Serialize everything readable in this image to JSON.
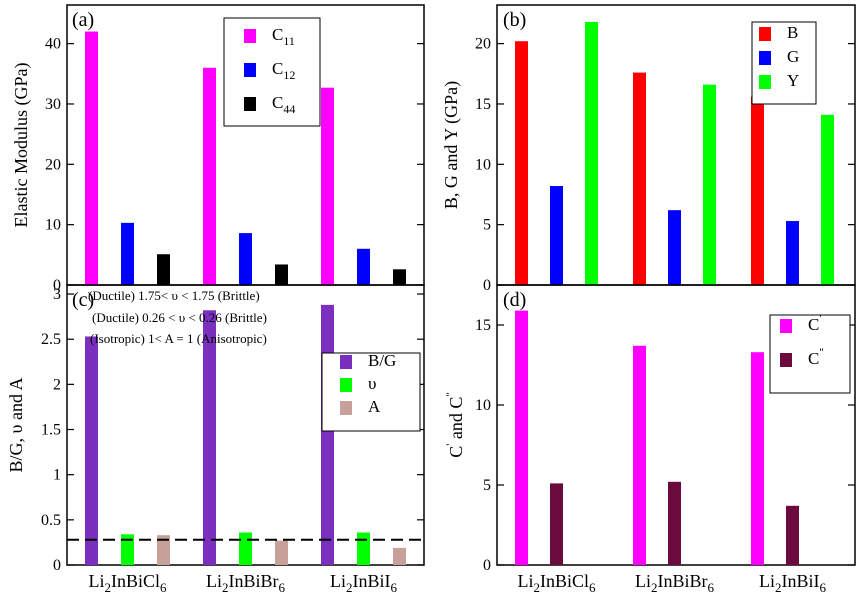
{
  "chart_data": [
    {
      "panel_label": "(a)",
      "type": "bar",
      "ylabel": "Elastic Modulus (GPa)",
      "ylim": [
        0,
        45
      ],
      "yticks": [
        "0",
        "10",
        "20",
        "30",
        "40"
      ],
      "categories": [
        "Li2InBiCl6",
        "Li2InBiBr6",
        "Li2InBiI6"
      ],
      "series": [
        {
          "name": "C11",
          "label_main": "C",
          "label_sub": "11",
          "color": "#ff00ff",
          "values": [
            42,
            36,
            32.7
          ]
        },
        {
          "name": "C12",
          "label_main": "C",
          "label_sub": "12",
          "color": "#0000ff",
          "values": [
            10.3,
            8.6,
            6.0
          ]
        },
        {
          "name": "C44",
          "label_main": "C",
          "label_sub": "44",
          "color": "#000000",
          "values": [
            5.1,
            3.4,
            2.6
          ]
        }
      ],
      "legend_position": "top-right"
    },
    {
      "panel_label": "(b)",
      "type": "bar",
      "ylabel": "B, G and Y (GPa)",
      "ylim": [
        0,
        22
      ],
      "yticks": [
        "0",
        "5",
        "10",
        "15",
        "20"
      ],
      "categories": [
        "Li2InBiCl6",
        "Li2InBiBr6",
        "Li2InBiI6"
      ],
      "series": [
        {
          "name": "B",
          "label_main": "B",
          "label_sub": "",
          "color": "#ff0000",
          "values": [
            20.2,
            17.6,
            15.6
          ]
        },
        {
          "name": "G",
          "label_main": "G",
          "label_sub": "",
          "color": "#0000ff",
          "values": [
            8.2,
            6.2,
            5.3
          ]
        },
        {
          "name": "Y",
          "label_main": "Y",
          "label_sub": "",
          "color": "#00ff00",
          "values": [
            21.8,
            16.6,
            14.1
          ]
        }
      ],
      "legend_position": "top-right"
    },
    {
      "panel_label": "(c)",
      "type": "bar",
      "ylabel": "B/G, υ and A",
      "ylim": [
        0,
        3
      ],
      "yticks": [
        "0",
        "0.5",
        "1",
        "1.5",
        "2",
        "2.5",
        "3"
      ],
      "categories": [
        "Li2InBiCl6",
        "Li2InBiBr6",
        "Li2InBiI6"
      ],
      "category_labels": [
        {
          "main": "Li",
          "sub1": "2",
          "mid": "InBiCl",
          "sub2": "6"
        },
        {
          "main": "Li",
          "sub1": "2",
          "mid": "InBiBr",
          "sub2": "6"
        },
        {
          "main": "Li",
          "sub1": "2",
          "mid": "InBiI",
          "sub2": "6"
        }
      ],
      "series": [
        {
          "name": "B/G",
          "label_main": "B/G",
          "label_sub": "",
          "color": "#7b2fbe",
          "values": [
            2.53,
            2.82,
            2.88
          ]
        },
        {
          "name": "υ",
          "label_main": "υ",
          "label_sub": "",
          "color": "#00ff00",
          "values": [
            0.34,
            0.36,
            0.36
          ]
        },
        {
          "name": "A",
          "label_main": "A",
          "label_sub": "",
          "color": "#c8a09a",
          "values": [
            0.33,
            0.27,
            0.19
          ]
        }
      ],
      "reference_line": {
        "y": 0.28,
        "style": "dashed"
      },
      "annotations": [
        "(Ductile) 1.75< υ < 1.75 (Brittle)",
        "(Ductile) 0.26 < υ < 0.26 (Brittle)",
        "(Isotropic) 1< A = 1 (Anisotropic)"
      ],
      "legend_position": "center-right"
    },
    {
      "panel_label": "(d)",
      "type": "bar",
      "ylabel_main": "C",
      "ylabel_sup1": "'",
      "ylabel_mid": " and C",
      "ylabel_sup2": "''",
      "ylim": [
        0,
        17
      ],
      "yticks": [
        "0",
        "5",
        "10",
        "15"
      ],
      "categories": [
        "Li2InBiCl6",
        "Li2InBiBr6",
        "Li2InBiI6"
      ],
      "category_labels": [
        {
          "main": "Li",
          "sub1": "2",
          "mid": "InBiCl",
          "sub2": "6"
        },
        {
          "main": "Li",
          "sub1": "2",
          "mid": "InBiBr",
          "sub2": "6"
        },
        {
          "main": "Li",
          "sub1": "2",
          "mid": "InBiI",
          "sub2": "6"
        }
      ],
      "series": [
        {
          "name": "C'",
          "label_main": "C",
          "label_sup": "'",
          "color": "#ff00ff",
          "values": [
            15.9,
            13.7,
            13.3
          ]
        },
        {
          "name": "C''",
          "label_main": "C",
          "label_sup": "''",
          "color": "#6b0a3c",
          "values": [
            5.1,
            5.2,
            3.7
          ]
        }
      ],
      "legend_position": "top-right"
    }
  ]
}
